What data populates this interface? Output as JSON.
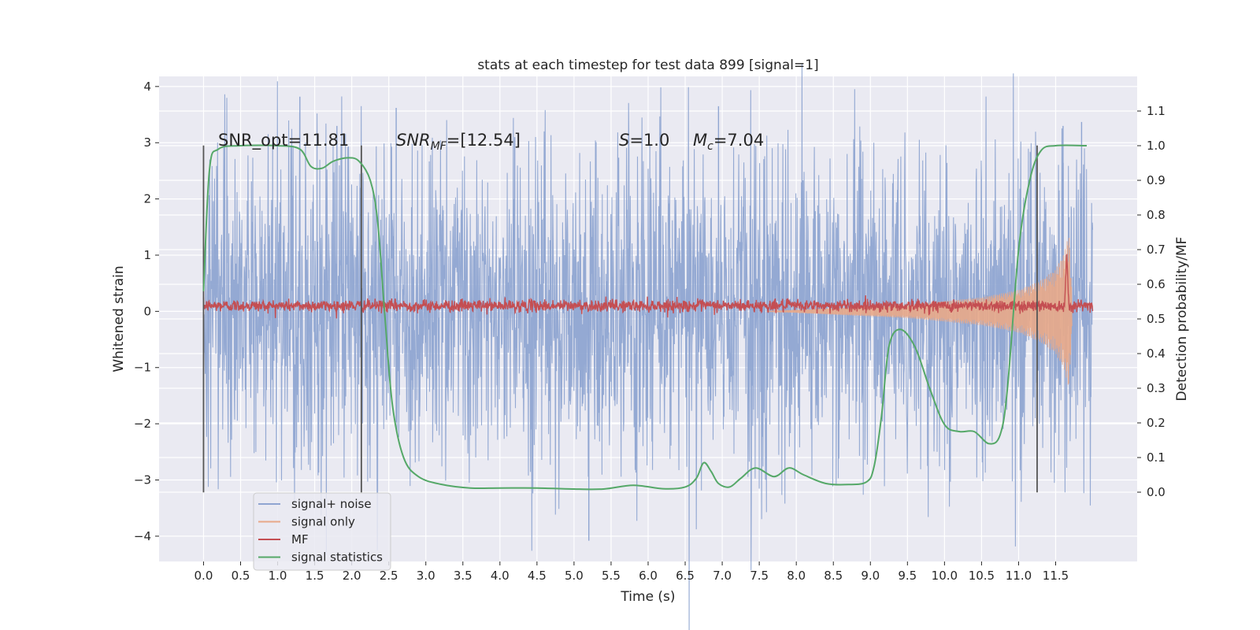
{
  "chart_data": {
    "type": "line",
    "title": "stats at each timestep for test data 899 [signal=1]",
    "xlabel": "Time (s)",
    "ylabel": "Whitened strain",
    "y2label": "Detection probability/MF",
    "xlim": [
      -0.6,
      12.6
    ],
    "ylim": [
      -4.45,
      4.18
    ],
    "y2lim": [
      -0.2,
      1.2
    ],
    "xticks": [
      0.0,
      0.5,
      1.0,
      1.5,
      2.0,
      2.5,
      3.0,
      3.5,
      4.0,
      4.5,
      5.0,
      5.5,
      6.0,
      6.5,
      7.0,
      7.5,
      8.0,
      8.5,
      9.0,
      9.5,
      10.0,
      10.5,
      11.0,
      11.5
    ],
    "xtick_labels": [
      "0.0",
      "0.5",
      "1.0",
      "1.5",
      "2.0",
      "2.5",
      "3.0",
      "3.5",
      "4.0",
      "4.5",
      "5.0",
      "5.5",
      "6.0",
      "6.5",
      "7.0",
      "7.5",
      "8.0",
      "8.5",
      "9.0",
      "9.5",
      "10.0",
      "10.5",
      "11.0",
      "11.5"
    ],
    "yticks": [
      4,
      3,
      2,
      1,
      0,
      -1,
      -2,
      -3,
      -4
    ],
    "ytick_labels": [
      "4",
      "3",
      "2",
      "1",
      "0",
      "−1",
      "−2",
      "−3",
      "−4"
    ],
    "y2ticks": [
      1.1,
      1.0,
      0.9,
      0.8,
      0.7,
      0.6,
      0.5,
      0.4,
      0.3,
      0.2,
      0.1,
      0.0
    ],
    "y2tick_labels": [
      "1.1",
      "1.0",
      "0.9",
      "0.8",
      "0.7",
      "0.6",
      "0.5",
      "0.4",
      "0.3",
      "0.2",
      "0.1",
      "0.0"
    ],
    "grid": true,
    "legend_position": "lower-left",
    "annotations": {
      "snr_opt": "SNR_opt=11.81",
      "snr_mf_label": "SNR",
      "snr_mf_sub": "MF",
      "snr_mf_value": "=[12.54]",
      "s_label": "S",
      "s_value": "=1.0",
      "mc_label": "M",
      "mc_sub": "c",
      "mc_value": "=7.04"
    },
    "vertical_lines_x": [
      0.0,
      2.13,
      11.25
    ],
    "series": [
      {
        "name": "signal+ noise",
        "color": "#8fa5d1",
        "axis": "left",
        "t_range": [
          0.0,
          12.0
        ],
        "envelope_upper": [
          [
            0.0,
            2.3
          ],
          [
            1.0,
            2.6
          ],
          [
            2.0,
            2.5
          ],
          [
            3.0,
            2.4
          ],
          [
            4.0,
            2.4
          ],
          [
            5.0,
            2.4
          ],
          [
            6.0,
            2.4
          ],
          [
            7.0,
            2.4
          ],
          [
            8.0,
            2.4
          ],
          [
            9.0,
            2.4
          ],
          [
            10.0,
            2.4
          ],
          [
            11.0,
            2.5
          ],
          [
            12.0,
            2.4
          ]
        ],
        "spikes": [
          [
            1.3,
            3.82
          ],
          [
            2.6,
            3.62
          ],
          [
            5.2,
            -4.08
          ],
          [
            6.95,
            3.65
          ],
          [
            11.85,
            3.37
          ],
          [
            11.6,
            3.3
          ],
          [
            1.8,
            3.3
          ],
          [
            4.2,
            3.1
          ]
        ]
      },
      {
        "name": "signal only",
        "color": "#e8a888",
        "axis": "left",
        "envelope": [
          [
            7.6,
            0.0
          ],
          [
            8.5,
            0.06
          ],
          [
            9.5,
            0.12
          ],
          [
            10.5,
            0.25
          ],
          [
            11.0,
            0.38
          ],
          [
            11.3,
            0.55
          ],
          [
            11.5,
            0.75
          ],
          [
            11.62,
            1.05
          ],
          [
            11.68,
            1.4
          ],
          [
            11.72,
            0.3
          ]
        ]
      },
      {
        "name": "MF",
        "color": "#c44e52",
        "axis": "left",
        "baseline": 0.1,
        "noise_amplitude": 0.12,
        "peak": [
          11.65,
          1.02
        ]
      },
      {
        "name": "signal statistics",
        "color": "#55a868",
        "axis": "right",
        "points": [
          [
            0.0,
            0.58
          ],
          [
            0.08,
            0.93
          ],
          [
            0.2,
            0.99
          ],
          [
            0.5,
            1.0
          ],
          [
            1.0,
            1.0
          ],
          [
            1.3,
            0.99
          ],
          [
            1.45,
            0.94
          ],
          [
            1.6,
            0.935
          ],
          [
            1.75,
            0.955
          ],
          [
            1.95,
            0.965
          ],
          [
            2.1,
            0.955
          ],
          [
            2.25,
            0.9
          ],
          [
            2.35,
            0.78
          ],
          [
            2.45,
            0.5
          ],
          [
            2.55,
            0.25
          ],
          [
            2.7,
            0.1
          ],
          [
            2.9,
            0.045
          ],
          [
            3.2,
            0.023
          ],
          [
            3.6,
            0.012
          ],
          [
            4.0,
            0.012
          ],
          [
            4.5,
            0.012
          ],
          [
            5.0,
            0.009
          ],
          [
            5.4,
            0.009
          ],
          [
            5.8,
            0.02
          ],
          [
            6.2,
            0.01
          ],
          [
            6.5,
            0.015
          ],
          [
            6.65,
            0.04
          ],
          [
            6.75,
            0.085
          ],
          [
            6.85,
            0.06
          ],
          [
            6.95,
            0.025
          ],
          [
            7.1,
            0.015
          ],
          [
            7.25,
            0.04
          ],
          [
            7.45,
            0.07
          ],
          [
            7.7,
            0.045
          ],
          [
            7.9,
            0.07
          ],
          [
            8.1,
            0.05
          ],
          [
            8.4,
            0.025
          ],
          [
            8.7,
            0.022
          ],
          [
            8.95,
            0.03
          ],
          [
            9.05,
            0.075
          ],
          [
            9.15,
            0.22
          ],
          [
            9.25,
            0.42
          ],
          [
            9.4,
            0.47
          ],
          [
            9.6,
            0.42
          ],
          [
            9.8,
            0.3
          ],
          [
            10.0,
            0.195
          ],
          [
            10.2,
            0.175
          ],
          [
            10.4,
            0.175
          ],
          [
            10.6,
            0.14
          ],
          [
            10.75,
            0.165
          ],
          [
            10.85,
            0.3
          ],
          [
            11.0,
            0.7
          ],
          [
            11.15,
            0.9
          ],
          [
            11.3,
            0.985
          ],
          [
            11.5,
            1.0
          ],
          [
            11.92,
            1.0
          ]
        ]
      }
    ]
  }
}
